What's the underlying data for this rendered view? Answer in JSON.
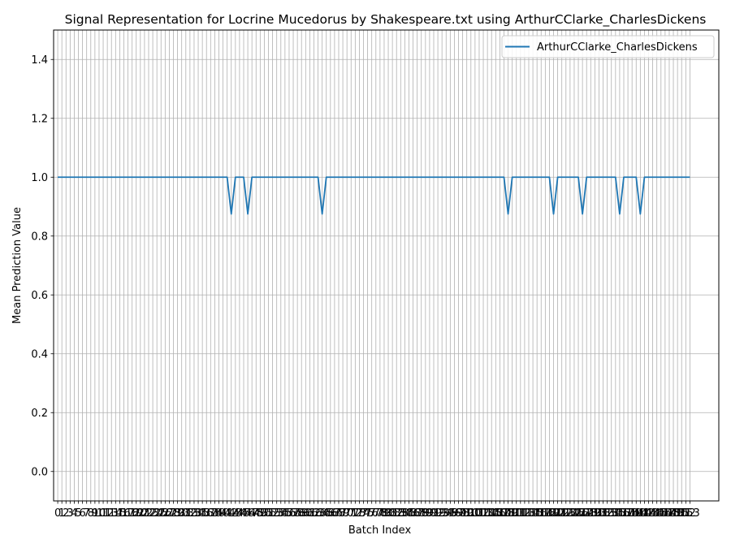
{
  "chart_data": {
    "type": "line",
    "title": "Signal Representation for Locrine Mucedorus by Shakespeare.txt using ArthurCClarke_CharlesDickens",
    "xlabel": "Batch Index",
    "ylabel": "Mean Prediction Value",
    "ylim": [
      -0.1,
      1.5
    ],
    "yticks": [
      "0.0",
      "0.2",
      "0.4",
      "0.6",
      "0.8",
      "1.0",
      "1.2",
      "1.4"
    ],
    "x_range": [
      0,
      153
    ],
    "xticks": "every integer from 0 to 153",
    "grid": true,
    "legend_position": "top-right",
    "series": [
      {
        "name": "ArthurCClarke_CharlesDickens",
        "color": "#1f77b4",
        "default_value": 1.0,
        "dips": [
          {
            "x": 42,
            "y": 0.875
          },
          {
            "x": 46,
            "y": 0.875
          },
          {
            "x": 64,
            "y": 0.875
          },
          {
            "x": 109,
            "y": 0.875
          },
          {
            "x": 120,
            "y": 0.875
          },
          {
            "x": 127,
            "y": 0.875
          },
          {
            "x": 136,
            "y": 0.875
          },
          {
            "x": 141,
            "y": 0.875
          }
        ]
      }
    ]
  }
}
